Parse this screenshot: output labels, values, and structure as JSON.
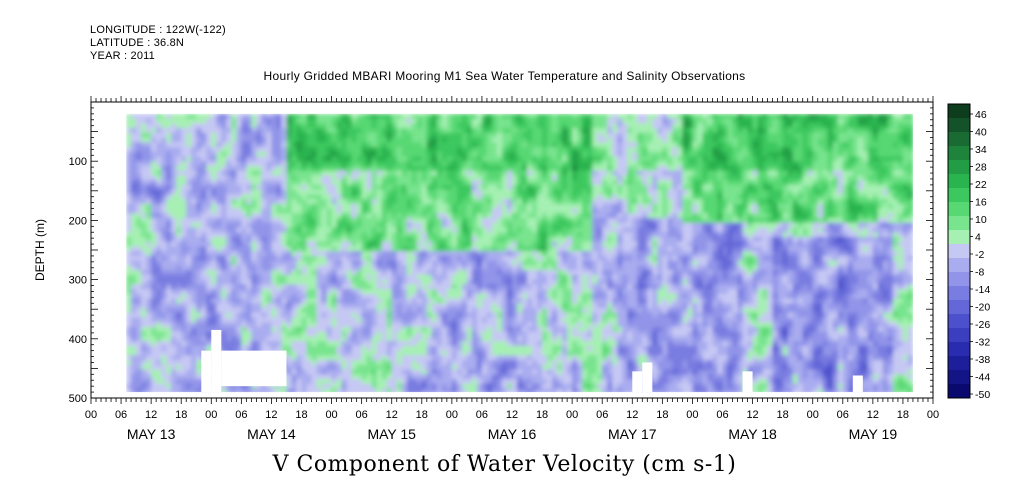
{
  "header": {
    "longitude": "LONGITUDE : 122W(-122)",
    "latitude": "LATITUDE : 36.8N",
    "year": "YEAR : 2011"
  },
  "chart_data": {
    "type": "heatmap",
    "title": "Hourly Gridded MBARI Mooring M1 Sea Water Temperature and Salinity Observations",
    "bottom_title": "V Component of Water Velocity (cm s-1)",
    "ylabel": "DEPTH (m)",
    "xlabel": "",
    "x_hour_ticks": [
      "00",
      "06",
      "12",
      "18",
      "00",
      "06",
      "12",
      "18",
      "00",
      "06",
      "12",
      "18",
      "00",
      "06",
      "12",
      "18",
      "00",
      "06",
      "12",
      "18",
      "00",
      "06",
      "12",
      "18",
      "00",
      "06",
      "12",
      "18",
      "00"
    ],
    "x_day_labels": [
      "MAY 13",
      "MAY 14",
      "MAY 15",
      "MAY 16",
      "MAY 17",
      "MAY 18",
      "MAY 19"
    ],
    "y_ticks": [
      100,
      200,
      300,
      400,
      500
    ],
    "ylim": [
      500,
      0
    ],
    "xlim_hours": [
      0,
      168
    ],
    "data_x_start_hour": 7,
    "data_x_end_hour": 164,
    "data_depth_top": 20,
    "data_depth_bottom": 490,
    "colorbar": {
      "labels": [
        "46",
        "40",
        "34",
        "28",
        "22",
        "16",
        "10",
        "4",
        "-2",
        "-8",
        "-14",
        "-20",
        "-26",
        "-32",
        "-38",
        "-44",
        "-50"
      ],
      "range": [
        -50,
        52
      ],
      "colors": [
        "#0e3d1e",
        "#14522a",
        "#196b33",
        "#1e843c",
        "#229c45",
        "#2ab44f",
        "#3cc85f",
        "#58d873",
        "#78e48e",
        "#a6f0b3",
        "#c6c8f4",
        "#a9acef",
        "#9194e8",
        "#797ce0",
        "#6367d8",
        "#4c50cc",
        "#3a3ebf",
        "#292cae",
        "#1d1f9a",
        "#131486",
        "#0a0a6e"
      ]
    },
    "blank_regions": [
      {
        "x_hours": [
          0,
          7
        ],
        "depth": [
          0,
          500
        ],
        "note": "no data"
      },
      {
        "x_hours": [
          22,
          24
        ],
        "depth": [
          420,
          490
        ]
      },
      {
        "x_hours": [
          24,
          26
        ],
        "depth": [
          385,
          490
        ]
      },
      {
        "x_hours": [
          26,
          39
        ],
        "depth": [
          420,
          480
        ]
      },
      {
        "x_hours": [
          108,
          110
        ],
        "depth": [
          455,
          490
        ]
      },
      {
        "x_hours": [
          110,
          112
        ],
        "depth": [
          440,
          490
        ]
      },
      {
        "x_hours": [
          130,
          132
        ],
        "depth": [
          455,
          490
        ]
      },
      {
        "x_hours": [
          152,
          154
        ],
        "depth": [
          462,
          490
        ]
      }
    ],
    "field_description_values": [
      {
        "x_hours": [
          8,
          38
        ],
        "depth": [
          20,
          490
        ],
        "mean_v": -4
      },
      {
        "x_hours": [
          39,
          100
        ],
        "depth": [
          20,
          250
        ],
        "mean_v": 18
      },
      {
        "x_hours": [
          60,
          90
        ],
        "depth": [
          250,
          490
        ],
        "mean_v": -6
      },
      {
        "x_hours": [
          105,
          130
        ],
        "depth": [
          200,
          490
        ],
        "mean_v": -10
      },
      {
        "x_hours": [
          118,
          164
        ],
        "depth": [
          20,
          200
        ],
        "mean_v": 20
      },
      {
        "x_hours": [
          136,
          160
        ],
        "depth": [
          230,
          490
        ],
        "mean_v": -14
      }
    ]
  }
}
